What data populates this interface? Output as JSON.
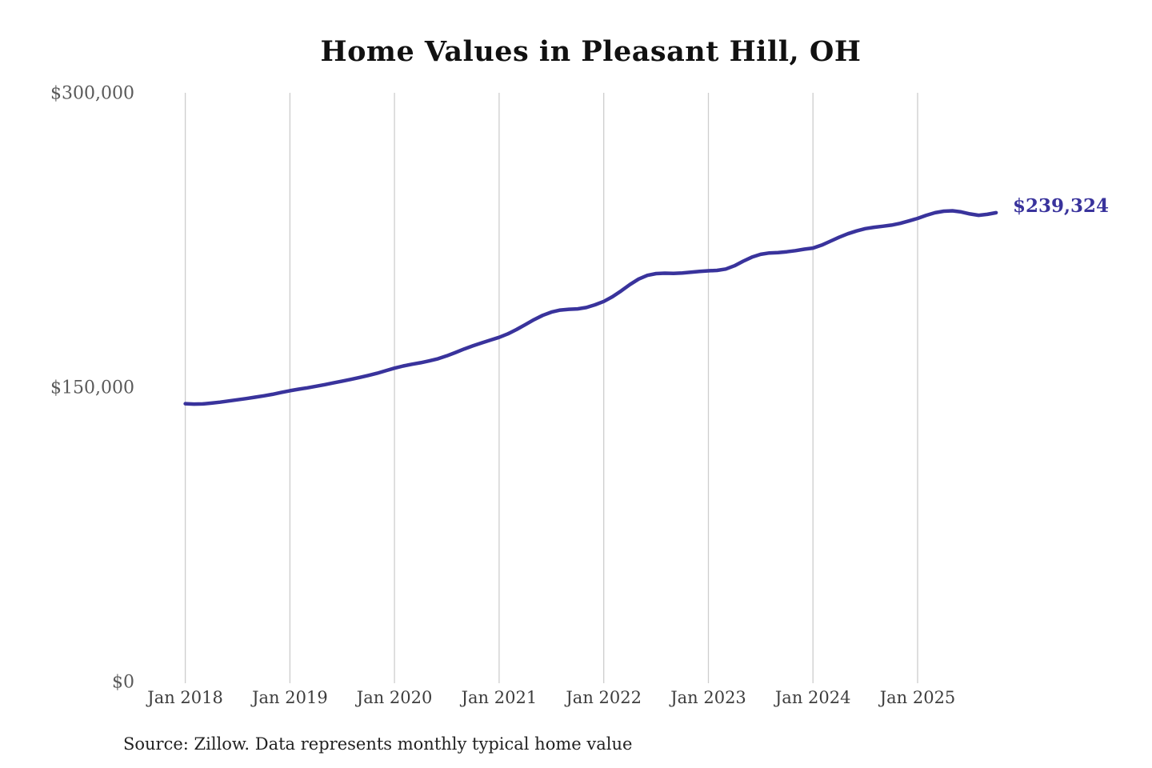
{
  "page": {
    "background": "#ffffff"
  },
  "chart_data": {
    "type": "line",
    "title": "Home Values in Pleasant Hill, OH",
    "xlabel": "",
    "ylabel": "",
    "ylim": [
      0,
      300000
    ],
    "grid": "vertical-only",
    "legend": "none",
    "yticks": {
      "values": [
        0,
        150000,
        300000
      ],
      "labels": [
        "$0",
        "$150,000",
        "$300,000"
      ]
    },
    "xticks": {
      "month_indices": [
        0,
        12,
        24,
        36,
        48,
        60,
        72,
        84
      ],
      "labels": [
        "Jan 2018",
        "Jan 2019",
        "Jan 2020",
        "Jan 2021",
        "Jan 2022",
        "Jan 2023",
        "Jan 2024",
        "Jan 2025"
      ]
    },
    "series": [
      {
        "name": "Monthly typical home value",
        "start_month": "Jan 2018",
        "frequency": "monthly",
        "end_label": "$239,324",
        "values": [
          142000,
          141800,
          141900,
          142300,
          142800,
          143400,
          144000,
          144600,
          145300,
          146000,
          146800,
          147700,
          148600,
          149400,
          150100,
          150900,
          151700,
          152600,
          153500,
          154400,
          155400,
          156400,
          157500,
          158800,
          160100,
          161200,
          162100,
          162900,
          163800,
          164900,
          166400,
          168100,
          169900,
          171500,
          173000,
          174400,
          175800,
          177600,
          179800,
          182300,
          184800,
          187000,
          188700,
          189700,
          190100,
          190300,
          191000,
          192400,
          194100,
          196500,
          199500,
          202700,
          205500,
          207400,
          208300,
          208500,
          208400,
          208600,
          209000,
          209400,
          209700,
          209900,
          210600,
          212300,
          214600,
          216700,
          218100,
          218800,
          219000,
          219400,
          220000,
          220700,
          221300,
          222800,
          224800,
          226800,
          228600,
          230000,
          231200,
          231900,
          232400,
          233000,
          233900,
          235100,
          236400,
          238000,
          239300,
          240100,
          240300,
          239700,
          238700,
          238000,
          238500,
          239324
        ]
      }
    ],
    "annotations": [
      {
        "text": "$239,324",
        "position": "end-of-line"
      }
    ],
    "source": "Source: Zillow. Data represents monthly typical home value",
    "colors": {
      "line": "#39339c",
      "end_label_text": "#39339c",
      "grid": "#cdcdcd",
      "title_text": "#111111",
      "y_tick_text": "#5a5a5a",
      "x_tick_text": "#3d3d3d",
      "source_text": "#222222"
    }
  }
}
